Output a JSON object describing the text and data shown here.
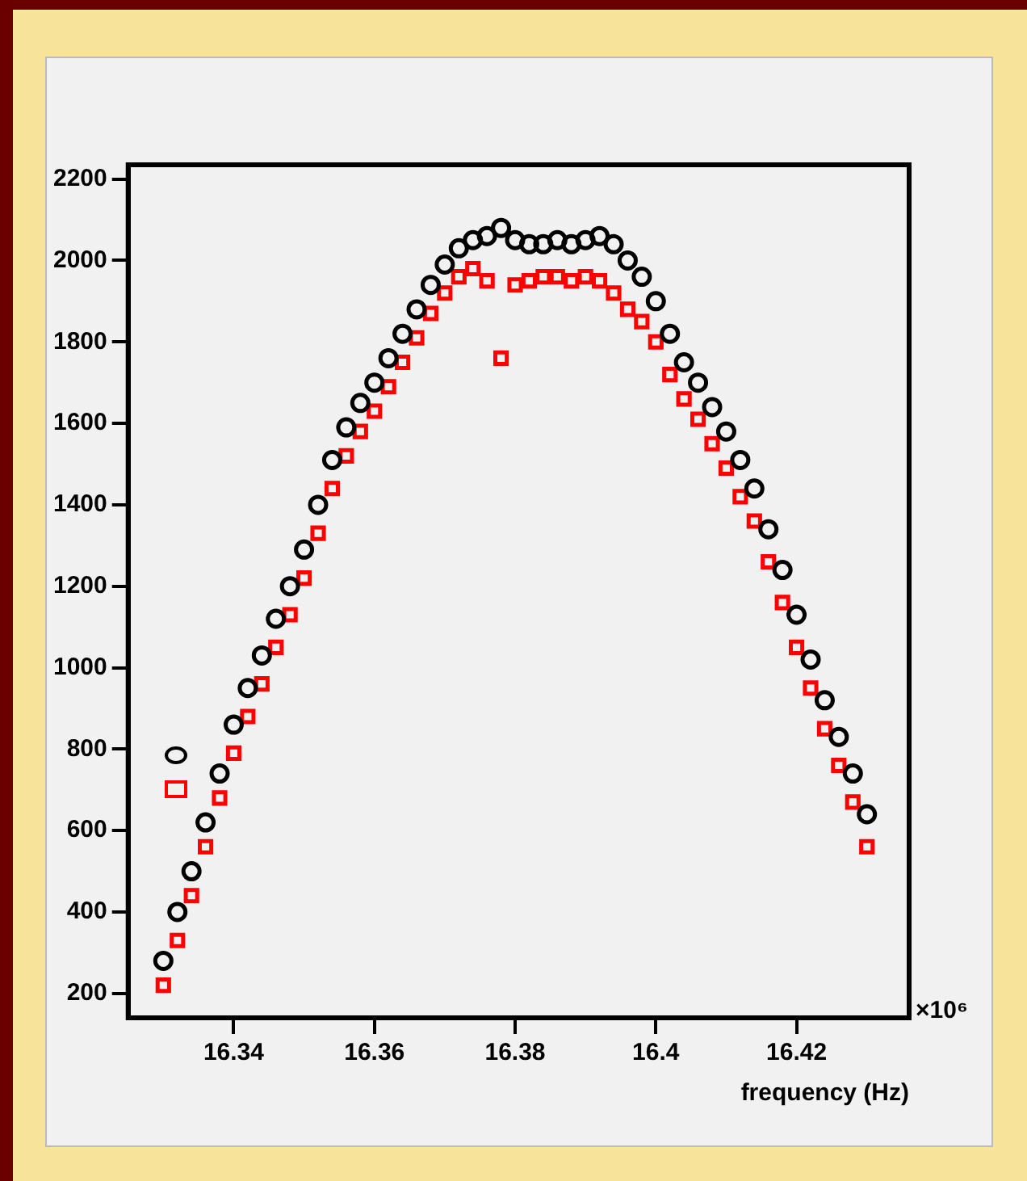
{
  "chart_data": {
    "type": "scatter",
    "xlabel": "frequency (Hz)",
    "annotations": [
      "×10⁶"
    ],
    "xlim": [
      16.325,
      16.436
    ],
    "xticks": [
      16.34,
      16.36,
      16.38,
      16.4,
      16.42
    ],
    "ylim": [
      140,
      2235
    ],
    "yticks": [
      200,
      400,
      600,
      800,
      1000,
      1200,
      1400,
      1600,
      1800,
      2000,
      2200
    ],
    "grid": false,
    "legend": false,
    "x": [
      16.33,
      16.332,
      16.334,
      16.336,
      16.338,
      16.34,
      16.342,
      16.344,
      16.346,
      16.348,
      16.35,
      16.352,
      16.354,
      16.356,
      16.358,
      16.36,
      16.362,
      16.364,
      16.366,
      16.368,
      16.37,
      16.372,
      16.374,
      16.376,
      16.378,
      16.38,
      16.382,
      16.384,
      16.386,
      16.388,
      16.39,
      16.392,
      16.394,
      16.396,
      16.398,
      16.4,
      16.402,
      16.404,
      16.406,
      16.408,
      16.41,
      16.412,
      16.414,
      16.416,
      16.418,
      16.42,
      16.422,
      16.424,
      16.426,
      16.428,
      16.43
    ],
    "series": [
      {
        "color": "#000000",
        "marker": "circle",
        "values": [
          280,
          400,
          500,
          620,
          740,
          860,
          950,
          1030,
          1120,
          1200,
          1290,
          1400,
          1510,
          1590,
          1650,
          1700,
          1760,
          1820,
          1880,
          1940,
          1990,
          2030,
          2050,
          2060,
          2080,
          2050,
          2040,
          2040,
          2050,
          2040,
          2050,
          2060,
          2040,
          2000,
          1960,
          1900,
          1820,
          1750,
          1700,
          1640,
          1580,
          1510,
          1440,
          1340,
          1240,
          1130,
          1020,
          920,
          830,
          740,
          640
        ]
      },
      {
        "color": "#ff0000",
        "marker": "square",
        "values": [
          220,
          330,
          440,
          560,
          680,
          790,
          880,
          960,
          1050,
          1130,
          1220,
          1330,
          1440,
          1520,
          1580,
          1630,
          1690,
          1750,
          1810,
          1870,
          1920,
          1960,
          1980,
          1950,
          1760,
          1940,
          1950,
          1960,
          1960,
          1950,
          1960,
          1950,
          1920,
          1880,
          1850,
          1800,
          1720,
          1660,
          1610,
          1550,
          1490,
          1420,
          1360,
          1260,
          1160,
          1050,
          950,
          850,
          760,
          670,
          560
        ]
      }
    ]
  }
}
